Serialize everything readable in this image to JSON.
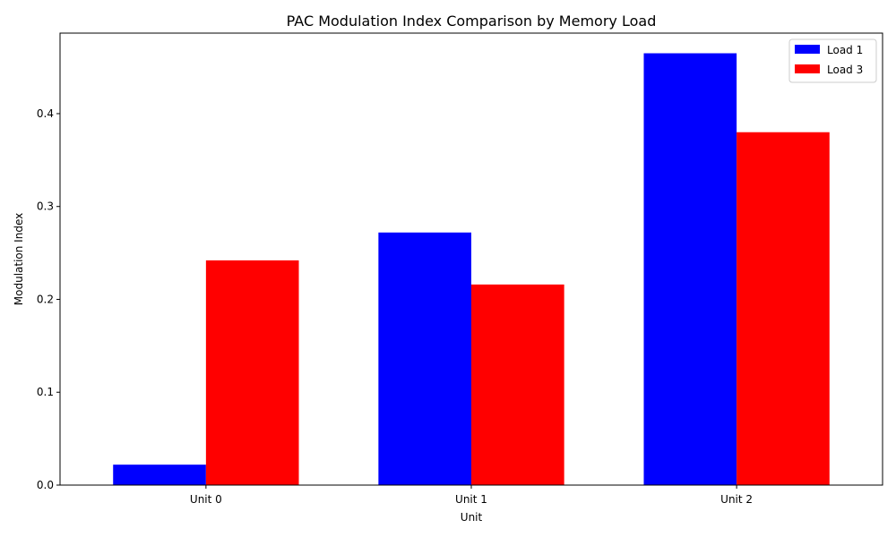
{
  "chart_data": {
    "type": "bar",
    "title": "PAC Modulation Index Comparison by Memory Load",
    "xlabel": "Unit",
    "ylabel": "Modulation Index",
    "categories": [
      "Unit 0",
      "Unit 1",
      "Unit 2"
    ],
    "series": [
      {
        "name": "Load 1",
        "color": "#0000ff",
        "values": [
          0.022,
          0.272,
          0.465
        ]
      },
      {
        "name": "Load 3",
        "color": "#ff0000",
        "values": [
          0.242,
          0.216,
          0.38
        ]
      }
    ],
    "ylim": [
      0,
      0.4867
    ],
    "yticks": [
      0.0,
      0.1,
      0.2,
      0.3,
      0.4
    ],
    "ytick_labels": [
      "0.0",
      "0.1",
      "0.2",
      "0.3",
      "0.4"
    ],
    "grid": false,
    "legend_position": "top-right"
  }
}
